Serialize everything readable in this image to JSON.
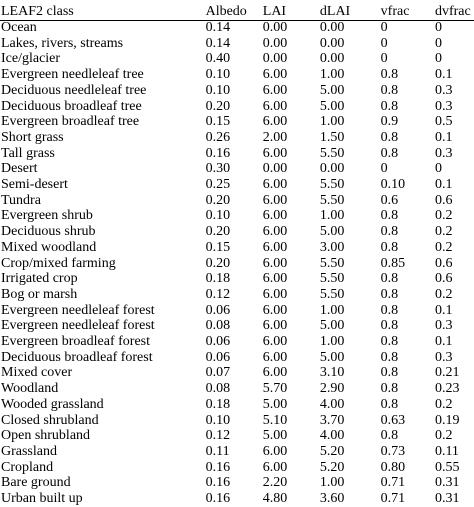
{
  "table": {
    "columns": [
      "LEAF2 class",
      "Albedo",
      "LAI",
      "dLAI",
      "vfrac",
      "dvfrac"
    ],
    "rows": [
      [
        "Ocean",
        "0.14",
        "0.00",
        "0.00",
        "0",
        "0"
      ],
      [
        "Lakes, rivers, streams",
        "0.14",
        "0.00",
        "0.00",
        "0",
        "0"
      ],
      [
        "Ice/glacier",
        "0.40",
        "0.00",
        "0.00",
        "0",
        "0"
      ],
      [
        "Evergreen needleleaf tree",
        "0.10",
        "6.00",
        "1.00",
        "0.8",
        "0.1"
      ],
      [
        "Deciduous needleleaf tree",
        "0.10",
        "6.00",
        "5.00",
        "0.8",
        "0.3"
      ],
      [
        "Deciduous broadleaf tree",
        "0.20",
        "6.00",
        "5.00",
        "0.8",
        "0.3"
      ],
      [
        "Evergreen broadleaf tree",
        "0.15",
        "6.00",
        "1.00",
        "0.9",
        "0.5"
      ],
      [
        "Short grass",
        "0.26",
        "2.00",
        "1.50",
        "0.8",
        "0.1"
      ],
      [
        "Tall grass",
        "0.16",
        "6.00",
        "5.50",
        "0.8",
        "0.3"
      ],
      [
        "Desert",
        "0.30",
        "0.00",
        "0.00",
        "0",
        "0"
      ],
      [
        "Semi-desert",
        "0.25",
        "6.00",
        "5.50",
        "0.10",
        "0.1"
      ],
      [
        "Tundra",
        "0.20",
        "6.00",
        "5.50",
        "0.6",
        "0.6"
      ],
      [
        "Evergreen shrub",
        "0.10",
        "6.00",
        "1.00",
        "0.8",
        "0.2"
      ],
      [
        "Deciduous shrub",
        "0.20",
        "6.00",
        "5.00",
        "0.8",
        "0.2"
      ],
      [
        "Mixed woodland",
        "0.15",
        "6.00",
        "3.00",
        "0.8",
        "0.2"
      ],
      [
        "Crop/mixed farming",
        "0.20",
        "6.00",
        "5.50",
        "0.85",
        "0.6"
      ],
      [
        "Irrigated crop",
        "0.18",
        "6.00",
        "5.50",
        "0.8",
        "0.6"
      ],
      [
        "Bog or marsh",
        "0.12",
        "6.00",
        "5.50",
        "0.8",
        "0.2"
      ],
      [
        "Evergreen needleleaf forest",
        "0.06",
        "6.00",
        "1.00",
        "0.8",
        "0.1"
      ],
      [
        "Evergreen needleleaf forest",
        "0.08",
        "6.00",
        "5.00",
        "0.8",
        "0.3"
      ],
      [
        "Evergreen broadleaf forest",
        "0.06",
        "6.00",
        "1.00",
        "0.8",
        "0.1"
      ],
      [
        "Deciduous broadleaf forest",
        "0.06",
        "6.00",
        "5.00",
        "0.8",
        "0.3"
      ],
      [
        "Mixed cover",
        "0.07",
        "6.00",
        "3.10",
        "0.8",
        "0.21"
      ],
      [
        "Woodland",
        "0.08",
        "5.70",
        "2.90",
        "0.8",
        "0.23"
      ],
      [
        "Wooded grassland",
        "0.18",
        "5.00",
        "4.00",
        "0.8",
        "0.2"
      ],
      [
        "Closed shrubland",
        "0.10",
        "5.10",
        "3.70",
        "0.63",
        "0.19"
      ],
      [
        "Open shrubland",
        "0.12",
        "5.00",
        "4.00",
        "0.8",
        "0.2"
      ],
      [
        "Grassland",
        "0.11",
        "6.00",
        "5.20",
        "0.73",
        "0.11"
      ],
      [
        "Cropland",
        "0.16",
        "6.00",
        "5.20",
        "0.80",
        "0.55"
      ],
      [
        "Bare ground",
        "0.16",
        "2.20",
        "1.00",
        "0.71",
        "0.31"
      ],
      [
        "Urban built up",
        "0.16",
        "4.80",
        "3.60",
        "0.71",
        "0.31"
      ]
    ]
  }
}
